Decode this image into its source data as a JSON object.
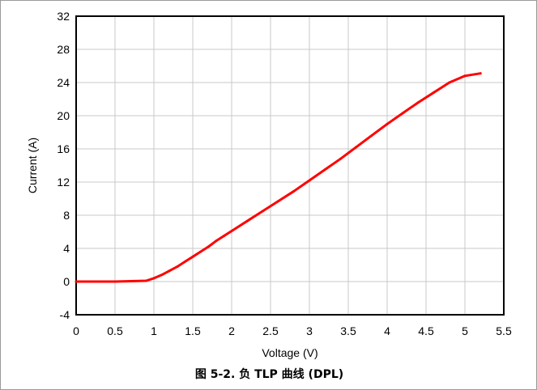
{
  "chart_data": {
    "type": "line",
    "title": "",
    "caption": "图 5-2. 负 TLP 曲线 (DPL)",
    "xlabel": "Voltage (V)",
    "ylabel": "Current (A)",
    "xlim": [
      0,
      5.5
    ],
    "ylim": [
      -4,
      32
    ],
    "xticks": [
      "0",
      "0.5",
      "1",
      "1.5",
      "2",
      "2.5",
      "3",
      "3.5",
      "4",
      "4.5",
      "5",
      "5.5"
    ],
    "yticks": [
      "-4",
      "0",
      "4",
      "8",
      "12",
      "16",
      "20",
      "24",
      "28",
      "32"
    ],
    "grid": true,
    "legend": "none",
    "series": [
      {
        "color": "#ff0000",
        "x": [
          0,
          0.5,
          0.9,
          1.0,
          1.1,
          1.2,
          1.3,
          1.4,
          1.5,
          1.6,
          1.7,
          1.8,
          1.9,
          2.0,
          2.2,
          2.4,
          2.6,
          2.8,
          3.0,
          3.2,
          3.4,
          3.6,
          3.8,
          4.0,
          4.2,
          4.4,
          4.6,
          4.8,
          5.0,
          5.2
        ],
        "y": [
          0,
          0,
          0.1,
          0.4,
          0.8,
          1.3,
          1.8,
          2.4,
          3.0,
          3.6,
          4.2,
          4.9,
          5.5,
          6.1,
          7.3,
          8.5,
          9.7,
          10.9,
          12.2,
          13.5,
          14.8,
          16.2,
          17.6,
          19.0,
          20.3,
          21.6,
          22.8,
          24.0,
          24.8,
          25.1
        ]
      }
    ]
  }
}
